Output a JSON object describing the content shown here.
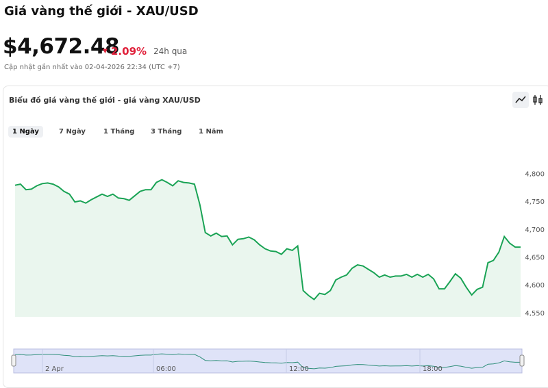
{
  "header": {
    "title": "Giá vàng thế giới - XAU/USD",
    "price": "$4,672.48",
    "change": "2.09%",
    "period": "24h qua",
    "updated": "Cập nhật gần nhất vào 02-04-2026 22:34 (UTC +7)"
  },
  "chart_card": {
    "title": "Biểu đồ giá vàng thế giới - giá vàng XAU/USD",
    "tabs": [
      "1 Ngày",
      "7 Ngày",
      "1 Tháng",
      "3 Tháng",
      "1 Năm"
    ],
    "navigator_labels": [
      "2 Apr",
      "06:00",
      "12:00",
      "18:00"
    ]
  },
  "chart_data": {
    "type": "line",
    "color": "#1aa355",
    "values": [
      4780,
      4782,
      4772,
      4773,
      4779,
      4783,
      4784,
      4782,
      4777,
      4769,
      4764,
      4750,
      4752,
      4748,
      4754,
      4759,
      4764,
      4760,
      4764,
      4757,
      4756,
      4753,
      4761,
      4769,
      4772,
      4772,
      4785,
      4790,
      4785,
      4779,
      4788,
      4785,
      4784,
      4782,
      4745,
      4695,
      4689,
      4694,
      4688,
      4689,
      4673,
      4683,
      4684,
      4687,
      4682,
      4673,
      4666,
      4662,
      4661,
      4656,
      4666,
      4663,
      4671,
      4591,
      4582,
      4575,
      4586,
      4584,
      4591,
      4610,
      4615,
      4619,
      4631,
      4637,
      4635,
      4629,
      4623,
      4615,
      4619,
      4615,
      4617,
      4617,
      4620,
      4615,
      4620,
      4615,
      4620,
      4612,
      4594,
      4594,
      4607,
      4621,
      4613,
      4597,
      4583,
      4593,
      4597,
      4641,
      4645,
      4660,
      4688,
      4676,
      4669,
      4669
    ],
    "ylim": [
      4545,
      4830
    ],
    "yticks": [
      {
        "value": 4550,
        "label": "4,550"
      },
      {
        "value": 4600,
        "label": "4,600"
      },
      {
        "value": 4650,
        "label": "4,650"
      },
      {
        "value": 4700,
        "label": "4,700"
      },
      {
        "value": 4750,
        "label": "4,750"
      },
      {
        "value": 4800,
        "label": "4,800"
      }
    ]
  }
}
